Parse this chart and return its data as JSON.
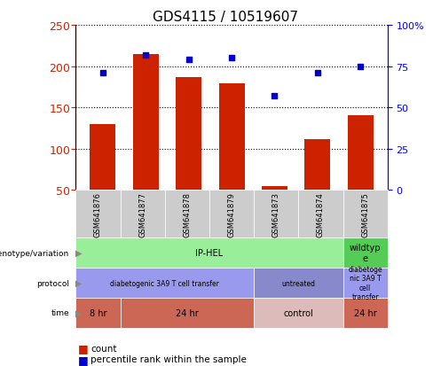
{
  "title": "GDS4115 / 10519607",
  "samples": [
    "GSM641876",
    "GSM641877",
    "GSM641878",
    "GSM641879",
    "GSM641873",
    "GSM641874",
    "GSM641875"
  ],
  "counts": [
    130,
    215,
    187,
    179,
    55,
    112,
    140
  ],
  "percentiles": [
    71,
    82,
    79,
    80,
    57,
    71,
    75
  ],
  "ylim_left": [
    50,
    250
  ],
  "ylim_right": [
    0,
    100
  ],
  "yticks_left": [
    50,
    100,
    150,
    200,
    250
  ],
  "yticks_right": [
    0,
    25,
    50,
    75,
    100
  ],
  "ytick_labels_right": [
    "0",
    "25",
    "50",
    "75",
    "100%"
  ],
  "bar_color": "#cc2200",
  "dot_color": "#0000cc",
  "sample_bg": "#cccccc",
  "genotype_row": {
    "label": "genotype/variation",
    "cells": [
      {
        "text": "IP-HEL",
        "span": 6,
        "color": "#99ee99"
      },
      {
        "text": "wildtyp\ne",
        "span": 1,
        "color": "#55cc55"
      }
    ]
  },
  "protocol_row": {
    "label": "protocol",
    "cells": [
      {
        "text": "diabetogenic 3A9 T cell transfer",
        "span": 4,
        "color": "#9999ee"
      },
      {
        "text": "untreated",
        "span": 2,
        "color": "#8888cc"
      },
      {
        "text": "diabetoge\nnic 3A9 T\ncell\ntransfer",
        "span": 1,
        "color": "#9999ee"
      }
    ]
  },
  "time_row": {
    "label": "time",
    "cells": [
      {
        "text": "8 hr",
        "span": 1,
        "color": "#cc6655"
      },
      {
        "text": "24 hr",
        "span": 3,
        "color": "#cc6655"
      },
      {
        "text": "control",
        "span": 2,
        "color": "#ddbbbb"
      },
      {
        "text": "24 hr",
        "span": 1,
        "color": "#cc6655"
      }
    ]
  }
}
